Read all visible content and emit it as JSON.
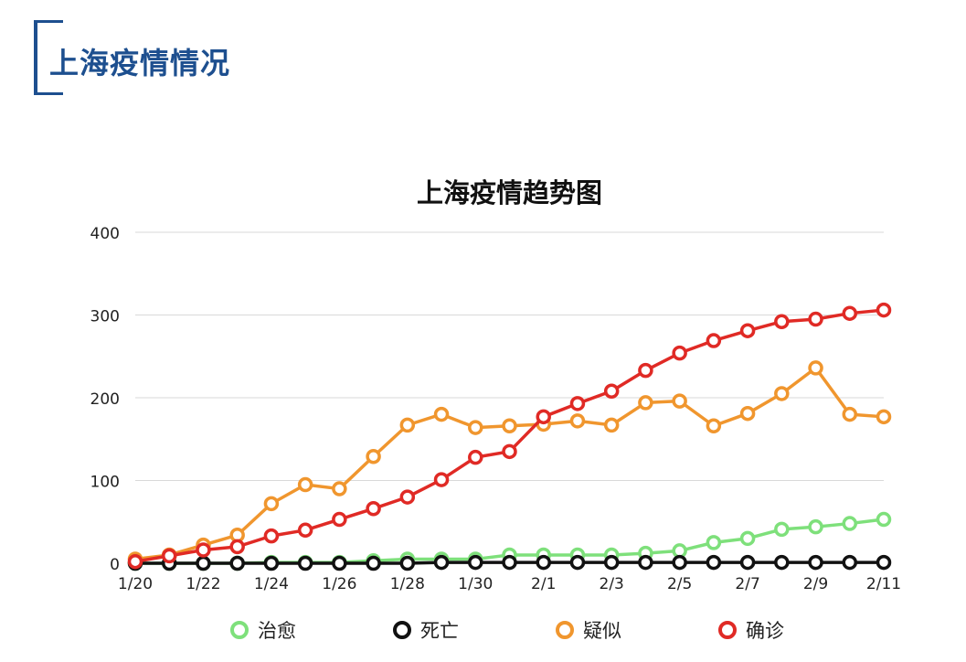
{
  "header": {
    "title": "上海疫情情况",
    "accent_color": "#1d4f8f"
  },
  "chart_data": {
    "type": "line",
    "title": "上海疫情趋势图",
    "xlabel": "",
    "ylabel": "",
    "ylim": [
      0,
      400
    ],
    "yticks": [
      "0",
      "100",
      "200",
      "300",
      "400"
    ],
    "x": [
      "1/20",
      "1/21",
      "1/22",
      "1/23",
      "1/24",
      "1/25",
      "1/26",
      "1/27",
      "1/28",
      "1/29",
      "1/30",
      "1/31",
      "2/1",
      "2/2",
      "2/3",
      "2/4",
      "2/5",
      "2/6",
      "2/7",
      "2/8",
      "2/9",
      "2/10",
      "2/11"
    ],
    "xtick_labels": [
      "1/20",
      "1/22",
      "1/24",
      "1/26",
      "1/28",
      "1/30",
      "2/1",
      "2/3",
      "2/5",
      "2/7",
      "2/9",
      "2/11"
    ],
    "grid": true,
    "legend_position": "bottom",
    "series": [
      {
        "name": "治愈",
        "color": "#7ee07b",
        "values": [
          0,
          0,
          0,
          0,
          1,
          1,
          1,
          3,
          5,
          5,
          5,
          10,
          10,
          10,
          10,
          12,
          15,
          25,
          30,
          41,
          44,
          48,
          53
        ]
      },
      {
        "name": "死亡",
        "color": "#111111",
        "values": [
          0,
          0,
          0,
          0,
          0,
          0,
          0,
          0,
          0,
          1,
          1,
          1,
          1,
          1,
          1,
          1,
          1,
          1,
          1,
          1,
          1,
          1,
          1
        ]
      },
      {
        "name": "疑似",
        "color": "#f0962e",
        "values": [
          5,
          10,
          22,
          34,
          72,
          95,
          90,
          129,
          167,
          180,
          164,
          166,
          168,
          172,
          167,
          194,
          196,
          166,
          181,
          205,
          236,
          180,
          177
        ]
      },
      {
        "name": "确诊",
        "color": "#e02a25",
        "values": [
          2,
          9,
          16,
          20,
          33,
          40,
          53,
          66,
          80,
          101,
          128,
          135,
          177,
          193,
          208,
          233,
          254,
          269,
          281,
          292,
          295,
          302,
          306
        ]
      }
    ]
  }
}
